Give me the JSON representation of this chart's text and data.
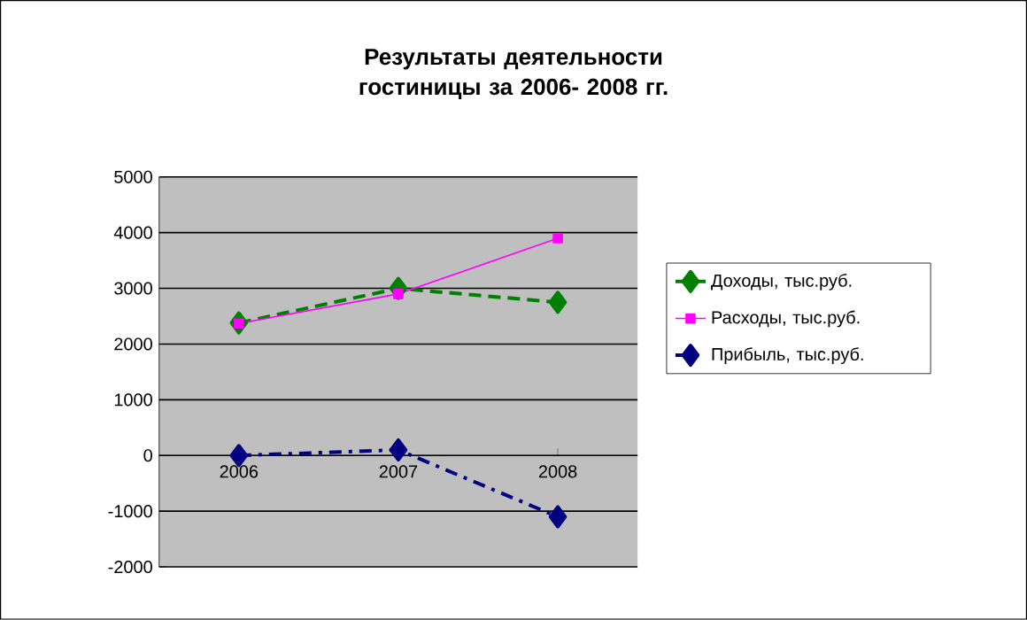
{
  "chart_data": {
    "type": "line",
    "title": "Результаты деятельности гостиницы за 2006- 2008 гг.",
    "categories": [
      "2006",
      "2007",
      "2008"
    ],
    "series": [
      {
        "name": "Доходы, тыс.руб.",
        "color": "#008000",
        "values": [
          2380,
          3000,
          2750
        ],
        "marker": "diamond",
        "line_style": "dashed"
      },
      {
        "name": "Расходы, тыс.руб.",
        "color": "#ff00ff",
        "values": [
          2370,
          2900,
          3900
        ],
        "marker": "square",
        "line_style": "solid"
      },
      {
        "name": "Прибыль, тыс.руб.",
        "color": "#000080",
        "values": [
          0,
          100,
          -1100
        ],
        "marker": "diamond",
        "line_style": "dashdot"
      }
    ],
    "ylim": [
      -2000,
      5000
    ],
    "yticks": [
      -2000,
      -1000,
      0,
      1000,
      2000,
      3000,
      4000,
      5000
    ],
    "grid": "y",
    "legend": "right"
  }
}
